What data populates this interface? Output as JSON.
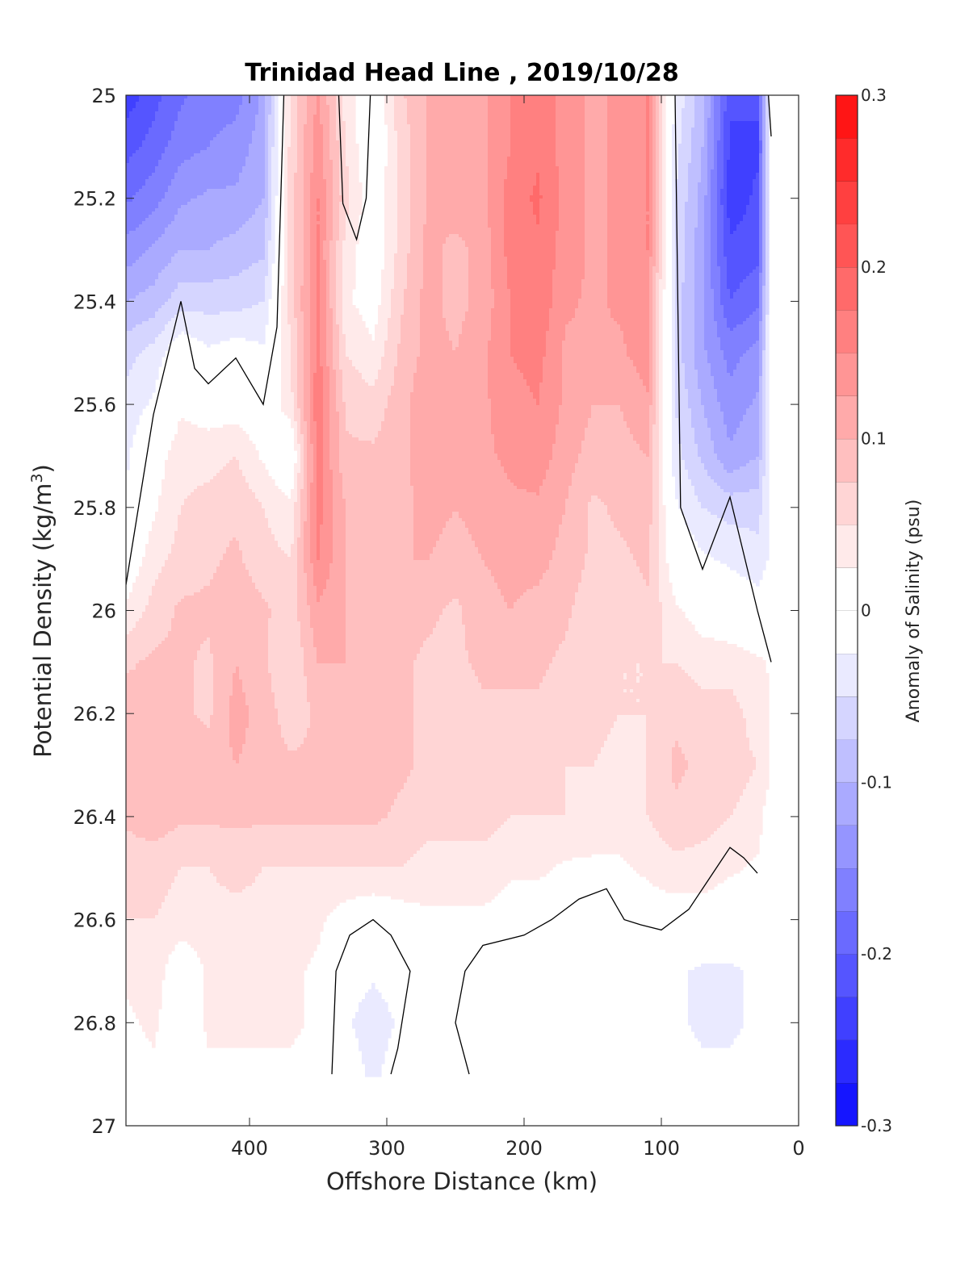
{
  "chart_data": {
    "type": "heatmap",
    "subtype": "filled-contour",
    "title": "Trinidad Head Line , 2019/10/28",
    "xlabel": "Offshore Distance (km)",
    "ylabel_main": "Potential Density (kg/m",
    "ylabel_sup": "3",
    "ylabel_close": ")",
    "xlim": [
      490,
      0
    ],
    "x_reversed": true,
    "ylim": [
      25,
      27
    ],
    "y_reversed": true,
    "x_ticks": [
      {
        "value": 400,
        "label": "400"
      },
      {
        "value": 300,
        "label": "300"
      },
      {
        "value": 200,
        "label": "200"
      },
      {
        "value": 100,
        "label": "100"
      },
      {
        "value": 0,
        "label": "0"
      }
    ],
    "y_ticks": [
      {
        "value": 25.0,
        "label": "25"
      },
      {
        "value": 25.2,
        "label": "25.2"
      },
      {
        "value": 25.4,
        "label": "25.4"
      },
      {
        "value": 25.6,
        "label": "25.6"
      },
      {
        "value": 25.8,
        "label": "25.8"
      },
      {
        "value": 26.0,
        "label": "26"
      },
      {
        "value": 26.2,
        "label": "26.2"
      },
      {
        "value": 26.4,
        "label": "26.4"
      },
      {
        "value": 26.6,
        "label": "26.6"
      },
      {
        "value": 26.8,
        "label": "26.8"
      },
      {
        "value": 27.0,
        "label": "27"
      }
    ],
    "grid": false,
    "colorbar": {
      "label": "Anomaly of Salinity (psu)",
      "range": [
        -0.3,
        0.3
      ],
      "levels": [
        -0.3,
        -0.275,
        -0.25,
        -0.225,
        -0.2,
        -0.175,
        -0.15,
        -0.125,
        -0.1,
        -0.075,
        -0.05,
        -0.025,
        0,
        0.025,
        0.05,
        0.075,
        0.1,
        0.125,
        0.15,
        0.175,
        0.2,
        0.225,
        0.25,
        0.275,
        0.3
      ],
      "ticks": [
        {
          "value": 0.3,
          "label": "0.3"
        },
        {
          "value": 0.2,
          "label": "0.2"
        },
        {
          "value": 0.1,
          "label": "0.1"
        },
        {
          "value": 0,
          "label": "0"
        },
        {
          "value": -0.1,
          "label": "-0.1"
        },
        {
          "value": -0.2,
          "label": "-0.2"
        },
        {
          "value": -0.3,
          "label": "-0.3"
        }
      ],
      "colormap": "blue-white-red",
      "color_min": "#0000ff",
      "color_zero": "#ffffff",
      "color_max": "#ff0000"
    },
    "data_extent": {
      "x": [
        490,
        20
      ],
      "y": [
        25,
        26.9
      ]
    },
    "grid_x": [
      490,
      470,
      450,
      430,
      410,
      390,
      370,
      350,
      330,
      310,
      290,
      270,
      250,
      230,
      210,
      190,
      170,
      150,
      130,
      110,
      90,
      70,
      50,
      30,
      20
    ],
    "grid_y": [
      25.0,
      25.1,
      25.2,
      25.3,
      25.4,
      25.5,
      25.6,
      25.7,
      25.8,
      25.9,
      26.0,
      26.1,
      26.2,
      26.3,
      26.4,
      26.5,
      26.6,
      26.7,
      26.8,
      26.9
    ],
    "values": [
      [
        -0.24,
        -0.21,
        -0.18,
        -0.16,
        -0.16,
        -0.12,
        0.06,
        0.13,
        0.04,
        -0.01,
        0.07,
        0.1,
        0.12,
        0.12,
        0.15,
        0.17,
        0.14,
        0.12,
        0.13,
        0.15,
        -0.03,
        -0.09,
        -0.22,
        -0.22,
        0.0
      ],
      [
        -0.21,
        -0.19,
        -0.16,
        -0.15,
        -0.14,
        -0.11,
        0.06,
        0.14,
        0.05,
        -0.01,
        0.06,
        0.1,
        0.12,
        0.12,
        0.15,
        0.17,
        0.14,
        0.12,
        0.13,
        0.15,
        -0.04,
        -0.1,
        -0.23,
        -0.23,
        0.0
      ],
      [
        -0.18,
        -0.16,
        -0.13,
        -0.12,
        -0.12,
        -0.1,
        0.06,
        0.15,
        0.06,
        0.0,
        0.06,
        0.1,
        0.12,
        0.12,
        0.16,
        0.18,
        0.14,
        0.12,
        0.13,
        0.15,
        -0.05,
        -0.11,
        -0.24,
        -0.22,
        0.0
      ],
      [
        -0.14,
        -0.12,
        -0.1,
        -0.1,
        -0.09,
        -0.08,
        0.06,
        0.15,
        0.04,
        0.0,
        0.06,
        0.11,
        0.09,
        0.11,
        0.16,
        0.17,
        0.14,
        0.12,
        0.13,
        0.15,
        -0.05,
        -0.12,
        -0.22,
        -0.21,
        0.0
      ],
      [
        -0.1,
        -0.09,
        -0.06,
        -0.06,
        -0.06,
        -0.05,
        0.06,
        0.16,
        0.03,
        0.01,
        0.07,
        0.11,
        0.09,
        0.11,
        0.15,
        0.17,
        0.13,
        0.12,
        0.13,
        0.14,
        -0.06,
        -0.12,
        -0.2,
        -0.18,
        0.0
      ],
      [
        -0.06,
        -0.04,
        0.0,
        -0.02,
        -0.01,
        -0.02,
        0.05,
        0.16,
        0.05,
        0.03,
        0.08,
        0.11,
        0.1,
        0.12,
        0.15,
        0.16,
        0.12,
        0.12,
        0.12,
        0.14,
        -0.06,
        -0.12,
        -0.16,
        -0.14,
        0.0
      ],
      [
        -0.04,
        -0.02,
        0.02,
        0.01,
        0.01,
        0.0,
        0.04,
        0.17,
        0.07,
        0.06,
        0.09,
        0.12,
        0.12,
        0.12,
        0.14,
        0.15,
        0.12,
        0.1,
        0.1,
        0.12,
        -0.05,
        -0.1,
        -0.14,
        -0.12,
        0.0
      ],
      [
        -0.03,
        0.01,
        0.04,
        0.04,
        0.05,
        0.02,
        -0.01,
        0.16,
        0.08,
        0.08,
        0.09,
        0.12,
        0.11,
        0.12,
        0.13,
        0.14,
        0.11,
        0.09,
        0.09,
        0.1,
        -0.04,
        -0.08,
        -0.12,
        -0.1,
        0.0
      ],
      [
        -0.02,
        0.02,
        0.05,
        0.06,
        0.07,
        0.05,
        0.03,
        0.16,
        0.1,
        0.09,
        0.09,
        0.11,
        0.1,
        0.11,
        0.12,
        0.12,
        0.1,
        0.07,
        0.08,
        0.09,
        -0.02,
        -0.05,
        -0.06,
        -0.06,
        -0.03
      ],
      [
        0.0,
        0.04,
        0.06,
        0.07,
        0.08,
        0.06,
        0.05,
        0.15,
        0.1,
        0.09,
        0.1,
        0.1,
        0.09,
        0.1,
        0.11,
        0.11,
        0.09,
        0.07,
        0.07,
        0.08,
        0.0,
        -0.02,
        -0.03,
        -0.04,
        -0.02
      ],
      [
        0.03,
        0.06,
        0.08,
        0.08,
        0.09,
        0.08,
        0.06,
        0.12,
        0.1,
        0.08,
        0.09,
        0.08,
        0.07,
        0.09,
        0.1,
        0.09,
        0.08,
        0.06,
        0.06,
        0.07,
        0.03,
        0.01,
        0.0,
        -0.01,
        0.0
      ],
      [
        0.07,
        0.08,
        0.08,
        0.07,
        0.1,
        0.08,
        0.05,
        0.1,
        0.1,
        0.08,
        0.08,
        0.07,
        0.07,
        0.08,
        0.08,
        0.08,
        0.07,
        0.06,
        0.05,
        0.05,
        0.05,
        0.04,
        0.04,
        0.03,
        0.02
      ],
      [
        0.09,
        0.09,
        0.08,
        0.07,
        0.11,
        0.09,
        0.06,
        0.08,
        0.09,
        0.08,
        0.08,
        0.07,
        0.06,
        0.07,
        0.07,
        0.07,
        0.06,
        0.06,
        0.05,
        0.05,
        0.07,
        0.06,
        0.06,
        0.04,
        0.03
      ],
      [
        0.1,
        0.1,
        0.09,
        0.09,
        0.1,
        0.09,
        0.08,
        0.08,
        0.09,
        0.09,
        0.08,
        0.07,
        0.06,
        0.07,
        0.06,
        0.06,
        0.05,
        0.05,
        0.04,
        0.05,
        0.08,
        0.07,
        0.06,
        0.05,
        0.03
      ],
      [
        0.08,
        0.09,
        0.08,
        0.08,
        0.08,
        0.08,
        0.08,
        0.08,
        0.08,
        0.08,
        0.07,
        0.06,
        0.06,
        0.06,
        0.05,
        0.05,
        0.05,
        0.04,
        0.04,
        0.05,
        0.07,
        0.06,
        0.05,
        0.04,
        0.0
      ],
      [
        0.06,
        0.06,
        0.05,
        0.05,
        0.06,
        0.05,
        0.05,
        0.05,
        0.05,
        0.05,
        0.05,
        0.04,
        0.04,
        0.04,
        0.03,
        0.03,
        0.02,
        0.02,
        0.02,
        0.03,
        0.04,
        0.04,
        0.03,
        0.02,
        0.0
      ],
      [
        0.05,
        0.05,
        0.04,
        0.04,
        0.04,
        0.04,
        0.04,
        0.03,
        0.01,
        0.0,
        0.01,
        0.02,
        0.02,
        0.02,
        0.01,
        0.01,
        0.0,
        0.0,
        0.0,
        0.01,
        0.01,
        0.01,
        0.0,
        0.0,
        0.0
      ],
      [
        0.03,
        0.04,
        0.0,
        0.03,
        0.03,
        0.03,
        0.03,
        0.02,
        -0.01,
        -0.02,
        -0.01,
        0.0,
        0.0,
        0.0,
        0.0,
        0.0,
        0.0,
        0.0,
        -0.01,
        -0.01,
        -0.02,
        -0.03,
        -0.03,
        -0.02,
        0.0
      ],
      [
        0.02,
        0.03,
        0.0,
        0.03,
        0.03,
        0.03,
        0.03,
        0.02,
        -0.02,
        -0.04,
        -0.02,
        0.0,
        0.0,
        0.0,
        0.0,
        0.0,
        -0.01,
        -0.01,
        -0.01,
        -0.02,
        -0.02,
        -0.03,
        -0.03,
        -0.02,
        0.0
      ],
      [
        0.01,
        0.02,
        0.0,
        0.02,
        0.02,
        0.02,
        0.02,
        0.01,
        -0.01,
        -0.03,
        -0.01,
        0.0,
        0.0,
        0.0,
        0.0,
        0.0,
        -0.01,
        -0.01,
        -0.01,
        -0.01,
        -0.01,
        -0.02,
        -0.02,
        -0.01,
        0.0
      ]
    ],
    "zero_contours": [
      [
        [
          490,
          25.95
        ],
        [
          470,
          25.62
        ],
        [
          450,
          25.4
        ],
        [
          440,
          25.53
        ],
        [
          430,
          25.56
        ],
        [
          410,
          25.51
        ],
        [
          390,
          25.6
        ],
        [
          380,
          25.45
        ],
        [
          375,
          25.0
        ]
      ],
      [
        [
          335,
          25.0
        ],
        [
          332,
          25.21
        ],
        [
          322,
          25.28
        ],
        [
          315,
          25.2
        ],
        [
          312,
          25.0
        ]
      ],
      [
        [
          90,
          25.0
        ],
        [
          86,
          25.8
        ],
        [
          70,
          25.92
        ],
        [
          50,
          25.78
        ],
        [
          30,
          26.0
        ],
        [
          20,
          26.1
        ]
      ],
      [
        [
          20,
          25.08
        ],
        [
          22,
          25.0
        ]
      ],
      [
        [
          340,
          26.9
        ],
        [
          337,
          26.7
        ],
        [
          327,
          26.63
        ],
        [
          310,
          26.6
        ],
        [
          297,
          26.63
        ],
        [
          283,
          26.7
        ],
        [
          292,
          26.85
        ],
        [
          297,
          26.9
        ]
      ],
      [
        [
          240,
          26.9
        ],
        [
          250,
          26.8
        ],
        [
          243,
          26.7
        ],
        [
          230,
          26.65
        ],
        [
          200,
          26.63
        ],
        [
          180,
          26.6
        ],
        [
          160,
          26.56
        ],
        [
          140,
          26.54
        ],
        [
          127,
          26.6
        ],
        [
          115,
          26.61
        ],
        [
          100,
          26.62
        ],
        [
          80,
          26.58
        ],
        [
          65,
          26.52
        ],
        [
          50,
          26.46
        ],
        [
          40,
          26.48
        ],
        [
          30,
          26.51
        ]
      ]
    ]
  }
}
